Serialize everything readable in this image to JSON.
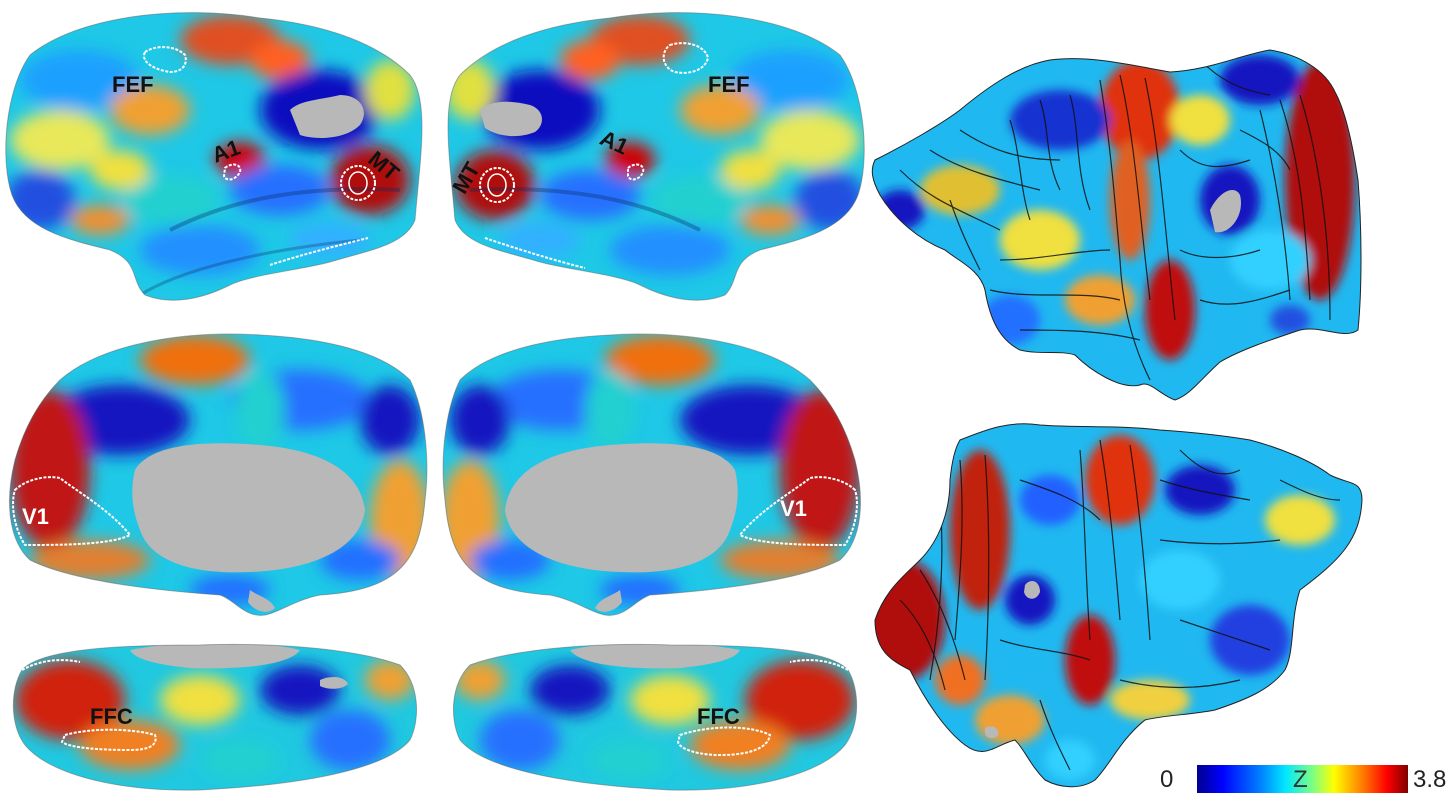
{
  "colormap": {
    "stops": [
      "#00008f",
      "#0000ff",
      "#0080ff",
      "#00e8ff",
      "#7fff80",
      "#ffff00",
      "#ff8000",
      "#ff0000",
      "#800000"
    ],
    "medial_wall": "#b8b8b8",
    "roi_outline": "#ffffff"
  },
  "lateral": {
    "left": {
      "fef": "FEF",
      "a1": "A1",
      "mt": "MT"
    },
    "right": {
      "fef": "FEF",
      "a1": "A1",
      "mt": "MT"
    }
  },
  "medial": {
    "left": {
      "v1": "V1"
    },
    "right": {
      "v1": "V1"
    }
  },
  "ventral": {
    "left": {
      "ffc": "FFC"
    },
    "right": {
      "ffc": "FFC"
    }
  },
  "colorbar": {
    "min_label": "0",
    "max_label": "3.8",
    "variable_label": "Z"
  }
}
